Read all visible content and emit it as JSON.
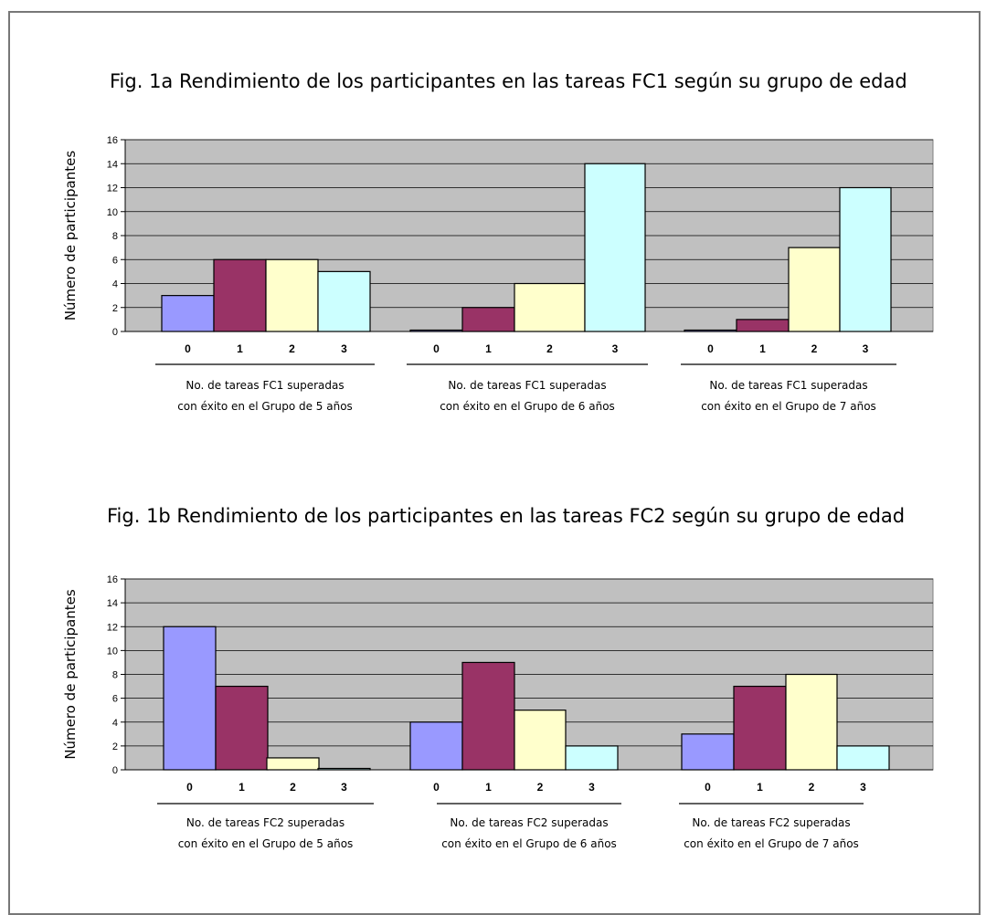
{
  "colors": {
    "plot_bg": "#c0c0c0",
    "bar0": "#9999ff",
    "bar1": "#993366",
    "bar2": "#ffffcc",
    "bar3": "#ccffff",
    "grid": "#000000"
  },
  "chart_data": [
    {
      "type": "bar",
      "title": "Fig. 1a  Rendimiento de los participantes en las tareas FC1 según su grupo de edad",
      "ylabel": "Número de participantes",
      "ylim": [
        0,
        16
      ],
      "yticks": [
        "0",
        "2",
        "4",
        "6",
        "8",
        "10",
        "12",
        "14",
        "16"
      ],
      "grid": true,
      "groups": [
        {
          "categories": [
            "0",
            "1",
            "2",
            "3"
          ],
          "values": [
            3,
            6,
            6,
            5
          ],
          "caption": [
            "No. de tareas FC1 superadas",
            "con éxito en el Grupo de 5 años"
          ]
        },
        {
          "categories": [
            "0",
            "1",
            "2",
            "3"
          ],
          "values": [
            0,
            2,
            4,
            14
          ],
          "caption": [
            "No. de tareas FC1 superadas",
            "con éxito en el Grupo de 6 años"
          ]
        },
        {
          "categories": [
            "0",
            "1",
            "2",
            "3"
          ],
          "values": [
            0,
            1,
            7,
            12
          ],
          "caption": [
            "No. de tareas FC1 superadas",
            "con éxito en el Grupo de 7 años"
          ]
        }
      ]
    },
    {
      "type": "bar",
      "title": "Fig. 1b  Rendimiento de los participantes en las tareas FC2 según su grupo de edad",
      "ylabel": "Número de participantes",
      "ylim": [
        0,
        16
      ],
      "yticks": [
        "0",
        "2",
        "4",
        "6",
        "8",
        "10",
        "12",
        "14",
        "16"
      ],
      "grid": true,
      "groups": [
        {
          "categories": [
            "0",
            "1",
            "2",
            "3"
          ],
          "values": [
            12,
            7,
            1,
            0
          ],
          "caption": [
            "No. de tareas FC2 superadas",
            "con éxito en el Grupo de 5 años"
          ]
        },
        {
          "categories": [
            "0",
            "1",
            "2",
            "3"
          ],
          "values": [
            4,
            9,
            5,
            2
          ],
          "caption": [
            "No. de tareas FC2 superadas",
            "con éxito en el Grupo de 6 años"
          ]
        },
        {
          "categories": [
            "0",
            "1",
            "2",
            "3"
          ],
          "values": [
            3,
            7,
            8,
            2
          ],
          "caption": [
            "No. de tareas FC2 superadas",
            "con éxito en el Grupo de 7 años"
          ]
        }
      ]
    }
  ]
}
